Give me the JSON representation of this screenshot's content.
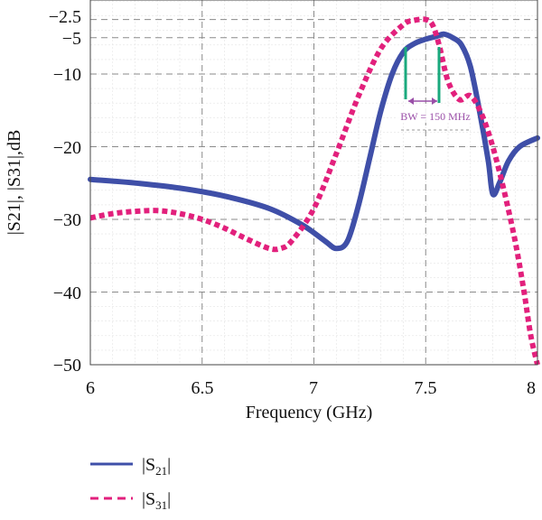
{
  "chart_data": {
    "type": "line",
    "title": "",
    "xlabel": "Frequency (GHz)",
    "ylabel": "|S21|, |S31|,dB",
    "xlim": [
      6,
      8
    ],
    "ylim": [
      -50,
      0
    ],
    "x_ticks": [
      "6",
      "6.5",
      "7",
      "7.5",
      "8"
    ],
    "y_ticks": [
      "−2.5",
      "−5",
      "−10",
      "−20",
      "−30",
      "−40",
      "−50"
    ],
    "grid": true,
    "legend_placement": "bottom-left",
    "series": [
      {
        "name": "|S21|",
        "color": "#3f4fa8",
        "style": "solid",
        "x": [
          6.0,
          6.2,
          6.4,
          6.6,
          6.8,
          6.95,
          7.05,
          7.1,
          7.15,
          7.2,
          7.25,
          7.3,
          7.35,
          7.4,
          7.45,
          7.5,
          7.55,
          7.58,
          7.62,
          7.66,
          7.7,
          7.74,
          7.78,
          7.8,
          7.83,
          7.87,
          7.92,
          8.0
        ],
        "values": [
          -24.5,
          -25.0,
          -25.7,
          -26.8,
          -28.5,
          -30.8,
          -33.0,
          -34.0,
          -33.0,
          -28.0,
          -21.5,
          -15.0,
          -10.0,
          -7.0,
          -5.8,
          -5.2,
          -4.8,
          -4.5,
          -5.0,
          -6.0,
          -9.0,
          -15.0,
          -22.0,
          -26.5,
          -25.0,
          -22.0,
          -20.0,
          -18.8
        ]
      },
      {
        "name": "|S31|",
        "color": "#e2207c",
        "style": "dashed",
        "x": [
          6.0,
          6.1,
          6.2,
          6.3,
          6.4,
          6.5,
          6.6,
          6.7,
          6.8,
          6.85,
          6.9,
          7.0,
          7.1,
          7.2,
          7.3,
          7.4,
          7.45,
          7.5,
          7.53,
          7.56,
          7.6,
          7.65,
          7.7,
          7.75,
          7.8,
          7.85,
          7.9,
          7.94,
          7.97,
          8.0
        ],
        "values": [
          -29.8,
          -29.2,
          -28.9,
          -28.8,
          -29.2,
          -30.0,
          -31.2,
          -32.7,
          -34.0,
          -34.0,
          -33.0,
          -28.5,
          -21.0,
          -13.0,
          -6.5,
          -3.2,
          -2.6,
          -2.5,
          -3.2,
          -6.0,
          -11.0,
          -13.5,
          -13.0,
          -15.5,
          -20.0,
          -26.0,
          -33.0,
          -40.0,
          -46.0,
          -50.0
        ]
      }
    ],
    "annotations": [
      {
        "text": "BW = 150 MHz",
        "x_start": 7.42,
        "x_end": 7.56,
        "level_db": -12.5
      }
    ],
    "legend": [
      "|S21|",
      "|S31|"
    ]
  }
}
